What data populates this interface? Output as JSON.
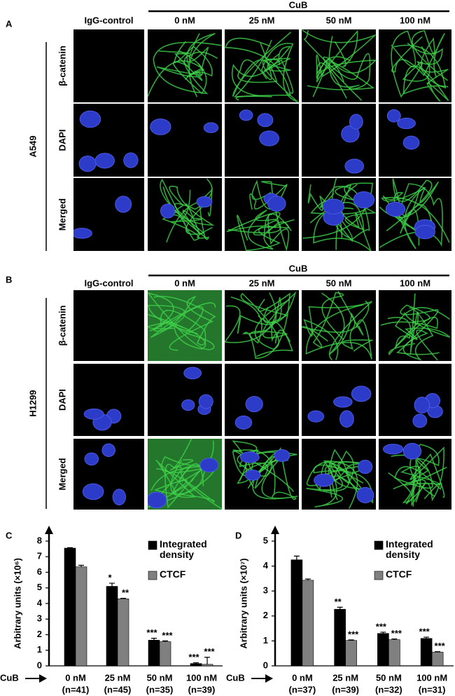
{
  "panels": [
    {
      "label": "A",
      "group_label": "CuB",
      "columns": [
        "IgG-control",
        "0 nM",
        "25 nM",
        "50 nM",
        "100 nM"
      ],
      "rows": [
        "β-catenin",
        "DAPI",
        "Merged"
      ],
      "cell_line": "A549"
    },
    {
      "label": "B",
      "group_label": "CuB",
      "columns": [
        "IgG-control",
        "0 nM",
        "25 nM",
        "50 nM",
        "100 nM"
      ],
      "rows": [
        "β-catenin",
        "DAPI",
        "Merged"
      ],
      "cell_line": "H1299"
    }
  ],
  "chart_data": [
    {
      "type": "bar",
      "panel_label": "C",
      "y_label": "Arbitrary units (×10⁶)",
      "x_prefix": "CuB",
      "categories": [
        "0 nM",
        "25 nM",
        "50 nM",
        "100 nM"
      ],
      "category_notes": [
        "(n=41)",
        "(n=45)",
        "(n=35)",
        "(n=39)"
      ],
      "series": [
        {
          "name": "Integrated density",
          "color": "#000000",
          "values": [
            7.55,
            5.1,
            1.65,
            0.15
          ],
          "errors": [
            0.03,
            0.2,
            0.12,
            0.05
          ],
          "significance": [
            null,
            "*",
            "***",
            "***"
          ]
        },
        {
          "name": "CTCF",
          "color": "#808080",
          "values": [
            6.35,
            4.3,
            1.55,
            0.1
          ],
          "errors": [
            0.1,
            0.03,
            0.05,
            0.45
          ],
          "significance": [
            null,
            "**",
            "***",
            "***"
          ]
        }
      ],
      "ylim": [
        0,
        8
      ],
      "yticks": [
        0,
        1,
        2,
        3,
        4,
        5,
        6,
        7,
        8
      ]
    },
    {
      "type": "bar",
      "panel_label": "D",
      "y_label": "Arbitrary units (×10⁷)",
      "x_prefix": "CuB",
      "categories": [
        "0 nM",
        "25 nM",
        "50 nM",
        "100 nM"
      ],
      "category_notes": [
        "(n=37)",
        "(n=39)",
        "(n=32)",
        "(n=31)"
      ],
      "series": [
        {
          "name": "Integrated density",
          "color": "#000000",
          "values": [
            4.25,
            2.27,
            1.3,
            1.1
          ],
          "errors": [
            0.15,
            0.08,
            0.05,
            0.05
          ],
          "significance": [
            null,
            "**",
            "***",
            "***"
          ]
        },
        {
          "name": "CTCF",
          "color": "#808080",
          "values": [
            3.43,
            1.02,
            1.05,
            0.55
          ],
          "errors": [
            0.05,
            0.02,
            0.03,
            0.02
          ],
          "significance": [
            null,
            "***",
            "***",
            "***"
          ]
        }
      ],
      "ylim": [
        0,
        5
      ],
      "yticks": [
        0,
        1,
        2,
        3,
        4,
        5
      ]
    }
  ]
}
